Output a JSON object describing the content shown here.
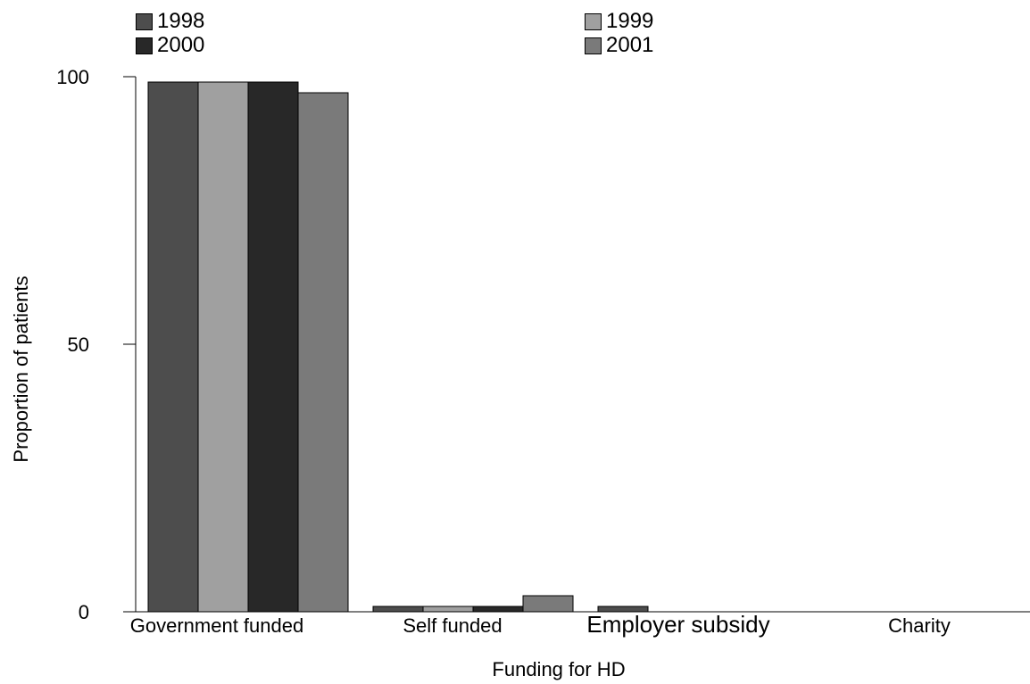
{
  "chart_data": {
    "type": "bar",
    "title": "",
    "xlabel": "Funding for HD",
    "ylabel": "Proportion of patients",
    "ylim": [
      0,
      100
    ],
    "yticks": [
      "0",
      "50",
      "100"
    ],
    "categories": [
      "Government funded",
      "Self funded",
      "Employer subsidy",
      "Charity"
    ],
    "series": [
      {
        "name": "1998",
        "color": "#4d4d4d",
        "values": [
          99,
          1,
          1,
          0
        ]
      },
      {
        "name": "1999",
        "color": "#a0a0a0",
        "values": [
          99,
          1,
          0,
          0
        ]
      },
      {
        "name": "2000",
        "color": "#282828",
        "values": [
          99,
          1,
          0,
          0
        ]
      },
      {
        "name": "2001",
        "color": "#7a7a7a",
        "values": [
          97,
          3,
          0,
          0
        ]
      }
    ],
    "legend_position": "top",
    "grid": false
  }
}
